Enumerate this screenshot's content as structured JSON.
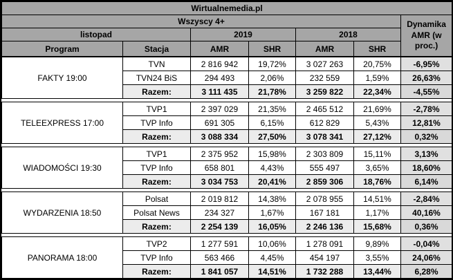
{
  "title": "Wirtualnemedia.pl",
  "header": {
    "audience": "Wszyscy 4+",
    "month": "listopad",
    "year_2019": "2019",
    "year_2018": "2018",
    "program_label": "Program",
    "station_label": "Stacja",
    "amr_label": "AMR",
    "shr_label": "SHR",
    "dynamics_label": "Dynamika AMR (w proc.)"
  },
  "colors": {
    "header_bg": "#a6a6a6",
    "total_row_bg": "#ececec",
    "dynamics_col_bg": "#e0e0e0",
    "border": "#000000",
    "cell_bg": "#ffffff"
  },
  "groups": [
    {
      "program": "FAKTY 19:00",
      "rows": [
        {
          "station": "TVN",
          "amr2019": "2 816 942",
          "shr2019": "19,72%",
          "amr2018": "3 027 263",
          "shr2018": "20,75%",
          "dyn": "-6,95%"
        },
        {
          "station": "TVN24 BiS",
          "amr2019": "294 493",
          "shr2019": "2,06%",
          "amr2018": "232 559",
          "shr2018": "1,59%",
          "dyn": "26,63%"
        },
        {
          "station": "Razem:",
          "amr2019": "3 111 435",
          "shr2019": "21,78%",
          "amr2018": "3 259 822",
          "shr2018": "22,34%",
          "dyn": "-4,55%"
        }
      ]
    },
    {
      "program": "TELEEXPRESS 17:00",
      "rows": [
        {
          "station": "TVP1",
          "amr2019": "2 397 029",
          "shr2019": "21,35%",
          "amr2018": "2 465 512",
          "shr2018": "21,69%",
          "dyn": "-2,78%"
        },
        {
          "station": "TVP Info",
          "amr2019": "691 305",
          "shr2019": "6,15%",
          "amr2018": "612 829",
          "shr2018": "5,43%",
          "dyn": "12,81%"
        },
        {
          "station": "Razem:",
          "amr2019": "3 088 334",
          "shr2019": "27,50%",
          "amr2018": "3 078 341",
          "shr2018": "27,12%",
          "dyn": "0,32%"
        }
      ]
    },
    {
      "program": "WIADOMOŚCI 19:30",
      "rows": [
        {
          "station": "TVP1",
          "amr2019": "2 375 952",
          "shr2019": "15,98%",
          "amr2018": "2 303 809",
          "shr2018": "15,11%",
          "dyn": "3,13%"
        },
        {
          "station": "TVP Info",
          "amr2019": "658 801",
          "shr2019": "4,43%",
          "amr2018": "555 497",
          "shr2018": "3,65%",
          "dyn": "18,60%"
        },
        {
          "station": "Razem:",
          "amr2019": "3 034 753",
          "shr2019": "20,41%",
          "amr2018": "2 859 306",
          "shr2018": "18,76%",
          "dyn": "6,14%"
        }
      ]
    },
    {
      "program": "WYDARZENIA 18:50",
      "rows": [
        {
          "station": "Polsat",
          "amr2019": "2 019 812",
          "shr2019": "14,38%",
          "amr2018": "2 078 955",
          "shr2018": "14,51%",
          "dyn": "-2,84%"
        },
        {
          "station": "Polsat News",
          "amr2019": "234 327",
          "shr2019": "1,67%",
          "amr2018": "167 181",
          "shr2018": "1,17%",
          "dyn": "40,16%"
        },
        {
          "station": "Razem:",
          "amr2019": "2 254 139",
          "shr2019": "16,05%",
          "amr2018": "2 246 136",
          "shr2018": "15,68%",
          "dyn": "0,36%"
        }
      ]
    },
    {
      "program": "PANORAMA 18:00",
      "rows": [
        {
          "station": "TVP2",
          "amr2019": "1 277 591",
          "shr2019": "10,06%",
          "amr2018": "1 278 091",
          "shr2018": "9,89%",
          "dyn": "-0,04%"
        },
        {
          "station": "TVP Info",
          "amr2019": "563 466",
          "shr2019": "4,45%",
          "amr2018": "454 197",
          "shr2018": "3,55%",
          "dyn": "24,06%"
        },
        {
          "station": "Razem:",
          "amr2019": "1 841 057",
          "shr2019": "14,51%",
          "amr2018": "1 732 288",
          "shr2018": "13,44%",
          "dyn": "6,28%"
        }
      ]
    }
  ],
  "chart_data": {
    "type": "table",
    "title": "Wirtualnemedia.pl",
    "subtitle": "Wszyscy 4+ — listopad",
    "columns": [
      "Program",
      "Stacja",
      "AMR 2019",
      "SHR 2019",
      "AMR 2018",
      "SHR 2018",
      "Dynamika AMR (w proc.)"
    ],
    "rows": [
      [
        "FAKTY 19:00",
        "TVN",
        2816942,
        "19,72%",
        3027263,
        "20,75%",
        "-6,95%"
      ],
      [
        "FAKTY 19:00",
        "TVN24 BiS",
        294493,
        "2,06%",
        232559,
        "1,59%",
        "26,63%"
      ],
      [
        "FAKTY 19:00",
        "Razem:",
        3111435,
        "21,78%",
        3259822,
        "22,34%",
        "-4,55%"
      ],
      [
        "TELEEXPRESS 17:00",
        "TVP1",
        2397029,
        "21,35%",
        2465512,
        "21,69%",
        "-2,78%"
      ],
      [
        "TELEEXPRESS 17:00",
        "TVP Info",
        691305,
        "6,15%",
        612829,
        "5,43%",
        "12,81%"
      ],
      [
        "TELEEXPRESS 17:00",
        "Razem:",
        3088334,
        "27,50%",
        3078341,
        "27,12%",
        "0,32%"
      ],
      [
        "WIADOMOŚCI 19:30",
        "TVP1",
        2375952,
        "15,98%",
        2303809,
        "15,11%",
        "3,13%"
      ],
      [
        "WIADOMOŚCI 19:30",
        "TVP Info",
        658801,
        "4,43%",
        555497,
        "3,65%",
        "18,60%"
      ],
      [
        "WIADOMOŚCI 19:30",
        "Razem:",
        3034753,
        "20,41%",
        2859306,
        "18,76%",
        "6,14%"
      ],
      [
        "WYDARZENIA 18:50",
        "Polsat",
        2019812,
        "14,38%",
        2078955,
        "14,51%",
        "-2,84%"
      ],
      [
        "WYDARZENIA 18:50",
        "Polsat News",
        234327,
        "1,67%",
        167181,
        "1,17%",
        "40,16%"
      ],
      [
        "WYDARZENIA 18:50",
        "Razem:",
        2254139,
        "16,05%",
        2246136,
        "15,68%",
        "0,36%"
      ],
      [
        "PANORAMA 18:00",
        "TVP2",
        1277591,
        "10,06%",
        1278091,
        "9,89%",
        "-0,04%"
      ],
      [
        "PANORAMA 18:00",
        "TVP Info",
        563466,
        "4,45%",
        454197,
        "3,55%",
        "24,06%"
      ],
      [
        "PANORAMA 18:00",
        "Razem:",
        1841057,
        "14,51%",
        1732288,
        "13,44%",
        "6,28%"
      ]
    ]
  }
}
